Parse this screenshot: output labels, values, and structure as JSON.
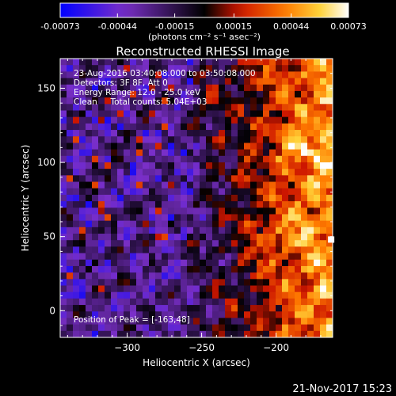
{
  "chart_data": {
    "type": "heatmap",
    "title": "Reconstructed RHESSI Image",
    "xlabel": "Heliocentric X (arcsec)",
    "ylabel": "Heliocentric Y (arcsec)",
    "xlim": [
      -345,
      -162
    ],
    "ylim": [
      -18,
      170
    ],
    "x_ticks": [
      -300,
      -250,
      -200
    ],
    "y_ticks": [
      0,
      50,
      100,
      150
    ],
    "colorbar": {
      "range": [
        -0.00073,
        0.00073
      ],
      "tick_values": [
        -0.00073,
        -0.00044,
        -0.00015,
        0.00015,
        0.00044,
        0.00073
      ],
      "tick_labels": [
        "-0.00073",
        "-0.00044",
        "-0.00015",
        "0.00015",
        "0.00044",
        "0.00073"
      ],
      "unit_label": "(photons cm⁻² s⁻¹ asec⁻²)",
      "colors": [
        "#0000ff",
        "#7a2fc8",
        "#000000",
        "#cc1500",
        "#ff7a00",
        "#ffd23a",
        "#ffffff"
      ]
    },
    "annotations": [
      "23-Aug-2016 03:40:08.000 to 03:50:08.000",
      "Detectors: 3F 8F, Att 0",
      "Energy Range: 12.0 - 25.0 keV",
      "Clean     Total counts: 5.04E+03"
    ],
    "peak_label": "Position of Peak = [-163,48]",
    "peak": {
      "x": -163,
      "y": 48
    },
    "timestamp": "21-Nov-2017 15:23",
    "grid": false
  }
}
